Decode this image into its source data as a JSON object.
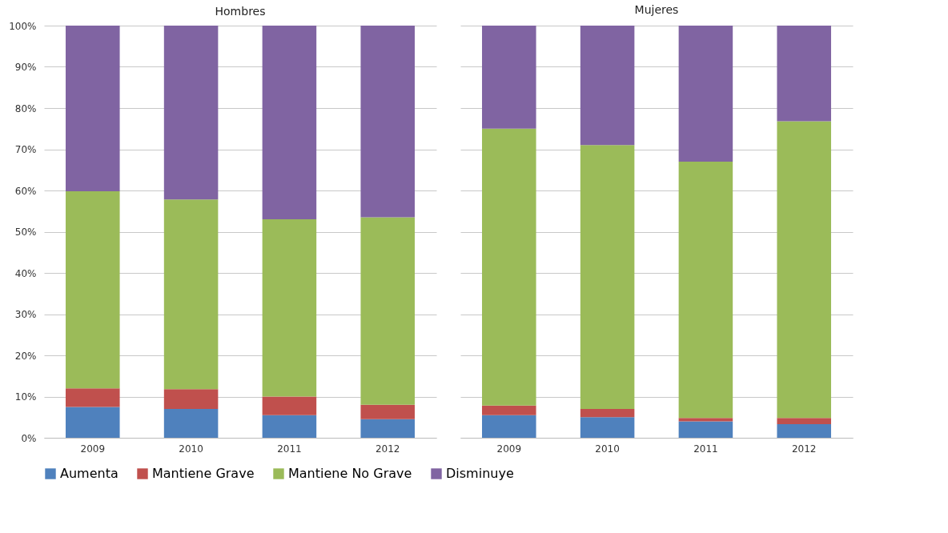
{
  "chart_data": [
    {
      "type": "bar",
      "title": "Hombres",
      "stacked": true,
      "categories": [
        "2009",
        "2010",
        "2011",
        "2012"
      ],
      "ylim": [
        0,
        100
      ],
      "yticks": [
        {
          "value": 0,
          "label": "0%"
        },
        {
          "value": 10,
          "label": "10%"
        },
        {
          "value": 20,
          "label": "20%"
        },
        {
          "value": 30,
          "label": "30%"
        },
        {
          "value": 40,
          "label": "40%"
        },
        {
          "value": 50,
          "label": "50%"
        },
        {
          "value": 60,
          "label": "60%"
        },
        {
          "value": 70,
          "label": "70%"
        },
        {
          "value": 80,
          "label": "80%"
        },
        {
          "value": 90,
          "label": "90%"
        },
        {
          "value": 100,
          "label": "100%"
        }
      ],
      "grid": "y",
      "legend": "bottom",
      "series": [
        {
          "name": "Aumenta",
          "color": "#4f81bd",
          "values": [
            7.5,
            7,
            5.5,
            4.5
          ]
        },
        {
          "name": "Mantiene Grave",
          "color": "#c0504d",
          "values": [
            4.5,
            4.8,
            4.5,
            3.5
          ]
        },
        {
          "name": "Mantiene No Grave",
          "color": "#9bbb59",
          "values": [
            47.8,
            46,
            43,
            45.5
          ]
        },
        {
          "name": "Disminuye",
          "color": "#8064a2",
          "values": [
            40.2,
            42.2,
            47,
            46.5
          ]
        }
      ]
    },
    {
      "type": "bar",
      "title": "Mujeres",
      "stacked": true,
      "categories": [
        "2009",
        "2010",
        "2011",
        "2012"
      ],
      "ylim": [
        0,
        100
      ],
      "yticks": [
        {
          "value": 0,
          "label": null
        },
        {
          "value": 10,
          "label": null
        },
        {
          "value": 20,
          "label": null
        },
        {
          "value": 30,
          "label": null
        },
        {
          "value": 40,
          "label": null
        },
        {
          "value": 50,
          "label": null
        },
        {
          "value": 60,
          "label": null
        },
        {
          "value": 70,
          "label": null
        },
        {
          "value": 80,
          "label": null
        },
        {
          "value": 90,
          "label": null
        },
        {
          "value": 100,
          "label": null
        }
      ],
      "grid": "y",
      "tick_labels": "x",
      "series": [
        {
          "name": "Aumenta",
          "color": "#4f81bd",
          "values": [
            5.5,
            5,
            4,
            3.3
          ]
        },
        {
          "name": "Mantiene Grave",
          "color": "#c0504d",
          "values": [
            2.3,
            2,
            0.8,
            1.5
          ]
        },
        {
          "name": "Mantiene No Grave",
          "color": "#9bbb59",
          "values": [
            67.2,
            64,
            62.2,
            72
          ]
        },
        {
          "name": "Disminuye",
          "color": "#8064a2",
          "values": [
            25,
            29,
            33,
            23.2
          ]
        }
      ]
    }
  ]
}
